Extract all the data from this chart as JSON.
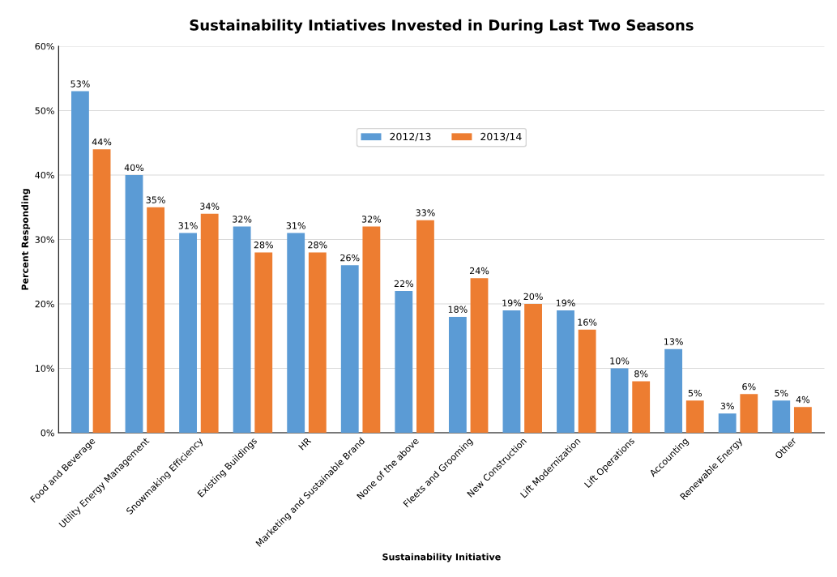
{
  "chart_data": {
    "type": "bar",
    "title": "Sustainability Intiatives Invested in During Last Two Seasons",
    "xlabel": "Sustainability Initiative",
    "ylabel": "Percent Responding",
    "categories": [
      "Food and Beverage",
      "Utility Energy Management",
      "Snowmaking Efficiency",
      "Existing Buildings",
      "HR",
      "Marketing and Sustainable Brand",
      "None of the above",
      "Fleets and Grooming",
      "New Construction",
      "Lift Modernization",
      "Lift Operations",
      "Accounting",
      "Renewable Energy",
      "Other"
    ],
    "series": [
      {
        "name": "2012/13",
        "color": "#5b9bd5",
        "values": [
          53,
          40,
          31,
          32,
          31,
          26,
          22,
          18,
          19,
          19,
          10,
          13,
          3,
          5
        ],
        "value_labels": [
          "53%",
          "40%",
          "31%",
          "32%",
          "31%",
          "26%",
          "22%",
          "18%",
          "19%",
          "19%",
          "10%",
          "13%",
          "3%",
          "5%"
        ]
      },
      {
        "name": "2013/14",
        "color": "#ed7d31",
        "values": [
          44,
          35,
          34,
          28,
          28,
          32,
          33,
          24,
          20,
          16,
          8,
          5,
          6,
          4
        ],
        "value_labels": [
          "44%",
          "35%",
          "34%",
          "28%",
          "28%",
          "32%",
          "33%",
          "24%",
          "20%",
          "16%",
          "8%",
          "5%",
          "6%",
          "4%"
        ]
      }
    ],
    "ylim": [
      0,
      60
    ],
    "yticks": [
      {
        "value": 0,
        "label": "0%"
      },
      {
        "value": 10,
        "label": "10%"
      },
      {
        "value": 20,
        "label": "20%"
      },
      {
        "value": 30,
        "label": "30%"
      },
      {
        "value": 40,
        "label": "40%"
      },
      {
        "value": 50,
        "label": "50%"
      },
      {
        "value": 60,
        "label": "60%"
      }
    ],
    "grid": "y",
    "legend": "top"
  }
}
